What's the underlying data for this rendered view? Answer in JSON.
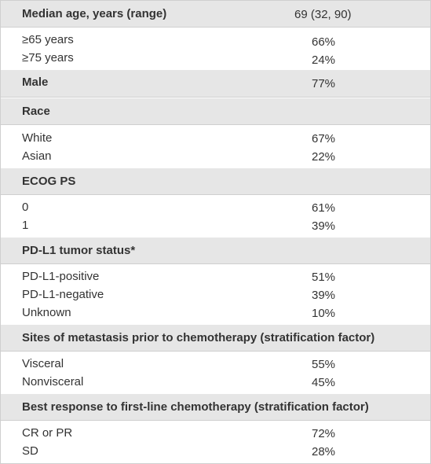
{
  "sections": [
    {
      "label": "Median age, years (range)",
      "value": "69 (32, 90)",
      "rows": [
        {
          "label": "≥65 years",
          "value": "66%"
        },
        {
          "label": "≥75 years",
          "value": "24%"
        }
      ]
    },
    {
      "label": "Male",
      "value": "77%",
      "rows": []
    },
    {
      "label": "Race",
      "value": "",
      "rows": [
        {
          "label": "White",
          "value": "67%"
        },
        {
          "label": "Asian",
          "value": "22%"
        }
      ]
    },
    {
      "label": "ECOG PS",
      "value": "",
      "rows": [
        {
          "label": "0",
          "value": "61%"
        },
        {
          "label": "1",
          "value": "39%"
        }
      ]
    },
    {
      "label": "PD-L1 tumor status*",
      "value": "",
      "rows": [
        {
          "label": "PD-L1-positive",
          "value": "51%"
        },
        {
          "label": "PD-L1-negative",
          "value": "39%"
        },
        {
          "label": "Unknown",
          "value": "10%"
        }
      ]
    },
    {
      "label": "Sites of metastasis prior to chemotherapy (stratification factor)",
      "value": "",
      "rows": [
        {
          "label": "Visceral",
          "value": "55%"
        },
        {
          "label": "Nonvisceral",
          "value": "45%"
        }
      ]
    },
    {
      "label": "Best response to first-line chemotherapy (stratification factor)",
      "value": "",
      "rows": [
        {
          "label": "CR or PR",
          "value": "72%"
        },
        {
          "label": "SD",
          "value": "28%"
        }
      ]
    }
  ]
}
